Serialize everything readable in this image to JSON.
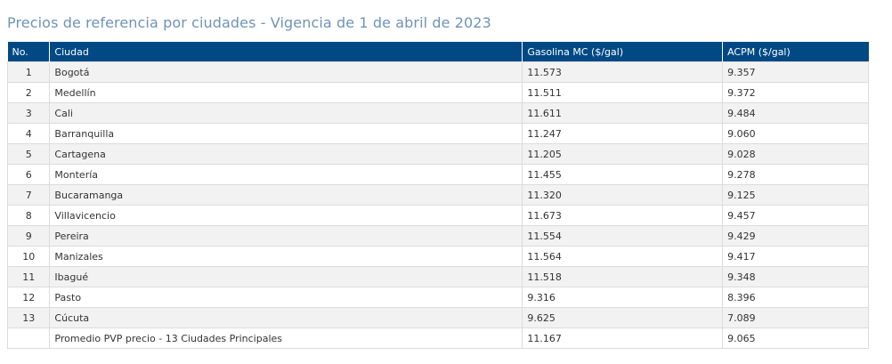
{
  "page_title": "Precios de referencia por ciudades - Vigencia de 1 de abril de 2023",
  "table": {
    "headers": {
      "no": "No.",
      "city": "Ciudad",
      "gasoline": "Gasolina MC ($/gal)",
      "acpm": "ACPM ($/gal)"
    },
    "rows": [
      {
        "no": "1",
        "city": "Bogotá",
        "gasoline": "11.573",
        "acpm": "9.357"
      },
      {
        "no": "2",
        "city": "Medellín",
        "gasoline": "11.511",
        "acpm": "9.372"
      },
      {
        "no": "3",
        "city": "Cali",
        "gasoline": "11.611",
        "acpm": "9.484"
      },
      {
        "no": "4",
        "city": "Barranquilla",
        "gasoline": "11.247",
        "acpm": "9.060"
      },
      {
        "no": "5",
        "city": "Cartagena",
        "gasoline": "11.205",
        "acpm": "9.028"
      },
      {
        "no": "6",
        "city": "Montería",
        "gasoline": "11.455",
        "acpm": "9.278"
      },
      {
        "no": "7",
        "city": "Bucaramanga",
        "gasoline": "11.320",
        "acpm": "9.125"
      },
      {
        "no": "8",
        "city": "Villavicencio",
        "gasoline": "11.673",
        "acpm": "9.457"
      },
      {
        "no": "9",
        "city": "Pereira",
        "gasoline": "11.554",
        "acpm": "9.429"
      },
      {
        "no": "10",
        "city": "Manizales",
        "gasoline": "11.564",
        "acpm": "9.417"
      },
      {
        "no": "11",
        "city": "Ibagué",
        "gasoline": "11.518",
        "acpm": "9.348"
      },
      {
        "no": "12",
        "city": "Pasto",
        "gasoline": "9.316",
        "acpm": "8.396"
      },
      {
        "no": "13",
        "city": "Cúcuta",
        "gasoline": "9.625",
        "acpm": "7.089"
      },
      {
        "no": "",
        "city": "Promedio PVP precio - 13 Ciudades Principales",
        "gasoline": "11.167",
        "acpm": "9.065"
      }
    ]
  },
  "colors": {
    "header_bg": "#004985",
    "title_text": "#6e93b8",
    "row_stripe": "#f2f2f2"
  }
}
